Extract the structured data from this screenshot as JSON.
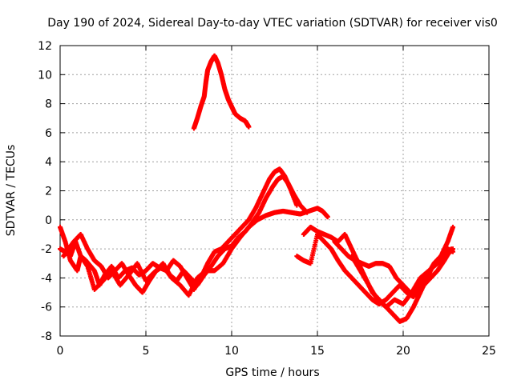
{
  "chart_data": {
    "type": "scatter",
    "title": "Day 190 of 2024, Sidereal Day-to-day VTEC variation (SDTVAR) for receiver vis0",
    "xlabel": "GPS time / hours",
    "ylabel": "SDTVAR / TECUs",
    "xlim": [
      0,
      25
    ],
    "ylim": [
      -8,
      12
    ],
    "xticks": [
      "0",
      "5",
      "10",
      "15",
      "20",
      "25"
    ],
    "yticks": [
      "-8",
      "-6",
      "-4",
      "-2",
      "0",
      "2",
      "4",
      "6",
      "8",
      "10",
      "12"
    ],
    "grid": true,
    "marker": "+",
    "color": "#ff0000",
    "series": [
      {
        "name": "s1",
        "x": [
          0.0,
          0.3,
          0.6,
          1.0,
          1.2,
          1.5,
          2.0,
          2.3,
          2.6,
          3.0,
          3.4,
          3.8,
          4.2,
          4.6,
          5.0,
          5.4,
          5.8,
          6.2,
          6.6,
          7.0,
          7.4,
          7.8,
          8.2,
          8.6,
          9.0,
          9.4,
          9.8,
          10.2,
          10.6,
          11.0,
          11.4,
          11.8,
          12.2,
          12.5,
          12.8,
          13.1,
          13.4,
          13.8
        ],
        "y": [
          -0.5,
          -1.5,
          -2.8,
          -3.5,
          -2.5,
          -2.8,
          -3.5,
          -4.5,
          -3.8,
          -3.2,
          -4.0,
          -3.5,
          -3.3,
          -3.8,
          -3.5,
          -3.0,
          -3.3,
          -3.5,
          -2.8,
          -3.2,
          -4.0,
          -4.8,
          -4.0,
          -3.0,
          -2.2,
          -2.0,
          -1.5,
          -1.0,
          -0.5,
          0.0,
          0.8,
          1.8,
          2.8,
          3.3,
          3.5,
          3.0,
          2.2,
          1.0
        ]
      },
      {
        "name": "s2",
        "x": [
          0.2,
          0.5,
          0.8,
          1.2,
          1.6,
          2.0,
          2.4,
          2.8,
          3.2,
          3.6,
          4.0,
          4.4,
          4.8,
          5.2,
          5.6,
          6.0,
          6.4,
          6.8,
          7.2,
          7.6,
          8.0,
          8.4,
          8.8,
          9.2,
          9.6,
          10.0,
          10.4,
          10.8,
          11.2,
          11.6,
          12.0,
          12.4,
          12.7,
          13.0,
          13.3,
          13.6,
          14.0,
          14.4
        ],
        "y": [
          -2.5,
          -2.0,
          -1.5,
          -1.0,
          -2.0,
          -2.8,
          -3.2,
          -4.0,
          -3.5,
          -3.0,
          -3.8,
          -4.5,
          -5.0,
          -4.2,
          -3.5,
          -3.0,
          -3.8,
          -4.2,
          -3.5,
          -4.0,
          -4.5,
          -3.8,
          -3.2,
          -2.5,
          -2.0,
          -1.8,
          -1.2,
          -0.8,
          -0.2,
          0.5,
          1.5,
          2.3,
          2.8,
          3.0,
          2.5,
          1.8,
          1.0,
          0.5
        ]
      },
      {
        "name": "s3",
        "x": [
          0.0,
          0.3,
          0.6,
          0.9,
          1.2,
          1.6,
          2.0,
          2.5,
          3.0,
          3.5,
          4.0,
          4.5,
          5.0,
          5.5,
          6.0,
          6.5,
          7.0,
          7.5,
          8.0,
          8.5,
          9.0,
          9.5,
          10.0,
          10.5,
          11.0,
          11.5,
          12.0,
          12.5,
          13.0,
          13.5,
          14.0,
          14.5,
          15.0,
          15.3,
          15.6
        ],
        "y": [
          -2.0,
          -2.2,
          -2.5,
          -1.5,
          -2.5,
          -3.2,
          -4.8,
          -4.2,
          -3.5,
          -4.5,
          -3.8,
          -3.0,
          -4.2,
          -3.6,
          -3.2,
          -4.0,
          -4.5,
          -5.2,
          -4.0,
          -3.5,
          -3.5,
          -3.0,
          -2.0,
          -1.2,
          -0.5,
          0.0,
          0.3,
          0.5,
          0.6,
          0.5,
          0.4,
          0.6,
          0.8,
          0.6,
          0.2
        ]
      },
      {
        "name": "s4",
        "x": [
          7.8,
          8.0,
          8.2,
          8.4,
          8.5,
          8.6,
          8.8,
          9.0,
          9.2,
          9.4,
          9.6,
          9.8,
          10.0,
          10.2,
          10.5,
          10.8,
          11.0
        ],
        "y": [
          6.3,
          7.0,
          7.8,
          8.5,
          9.5,
          10.3,
          10.9,
          11.3,
          10.8,
          10.0,
          9.0,
          8.3,
          7.8,
          7.3,
          7.0,
          6.8,
          6.4
        ]
      },
      {
        "name": "s5",
        "x": [
          14.2,
          14.6,
          15.0,
          15.4,
          15.8,
          16.2,
          16.6,
          17.0,
          17.4,
          17.8,
          18.2,
          18.6,
          19.0,
          19.4,
          19.8,
          20.2,
          20.6,
          21.0,
          21.4,
          21.8,
          22.2,
          22.6,
          22.9
        ],
        "y": [
          -1.0,
          -0.5,
          -0.8,
          -1.0,
          -1.2,
          -1.5,
          -1.0,
          -2.0,
          -3.0,
          -4.0,
          -5.0,
          -5.5,
          -6.0,
          -6.5,
          -7.0,
          -6.8,
          -6.0,
          -5.0,
          -4.0,
          -3.0,
          -2.5,
          -1.5,
          -0.5
        ]
      },
      {
        "name": "s6",
        "x": [
          13.8,
          14.2,
          14.6,
          15.0,
          15.4,
          15.8,
          16.2,
          16.6,
          17.0,
          17.4,
          17.8,
          18.2,
          18.6,
          19.0,
          19.4,
          19.8,
          20.2,
          20.6,
          21.0,
          21.4,
          21.8,
          22.2,
          22.6,
          22.9
        ],
        "y": [
          -2.5,
          -2.8,
          -3.0,
          -1.0,
          -1.5,
          -2.0,
          -2.8,
          -3.5,
          -4.0,
          -4.5,
          -5.0,
          -5.5,
          -5.8,
          -5.5,
          -5.0,
          -4.5,
          -5.0,
          -5.3,
          -4.5,
          -3.8,
          -3.0,
          -2.5,
          -2.0,
          -2.2
        ]
      },
      {
        "name": "s7",
        "x": [
          16.0,
          16.4,
          16.8,
          17.2,
          17.6,
          18.0,
          18.4,
          18.8,
          19.2,
          19.6,
          20.0,
          20.4,
          20.8,
          21.2,
          21.6,
          22.0,
          22.4,
          22.8
        ],
        "y": [
          -1.5,
          -2.0,
          -2.5,
          -2.8,
          -3.0,
          -3.2,
          -3.0,
          -3.0,
          -3.2,
          -4.0,
          -4.5,
          -5.0,
          -5.0,
          -4.5,
          -4.0,
          -3.5,
          -2.8,
          -2.0
        ]
      },
      {
        "name": "s8",
        "x": [
          17.0,
          17.5,
          18.0,
          18.5,
          19.0,
          19.5,
          20.0,
          20.5,
          21.0,
          21.5,
          22.0,
          22.5,
          22.9
        ],
        "y": [
          -2.5,
          -3.5,
          -4.5,
          -5.5,
          -6.0,
          -5.5,
          -5.8,
          -5.0,
          -4.0,
          -3.5,
          -3.0,
          -2.5,
          -2.0
        ]
      }
    ]
  }
}
